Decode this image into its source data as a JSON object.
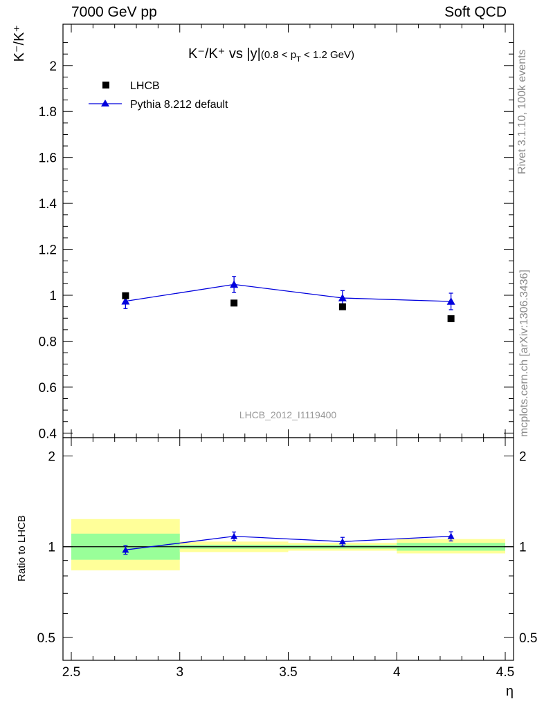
{
  "header": {
    "left": "7000 GeV pp",
    "right": "Soft QCD"
  },
  "side_labels": {
    "rivet": "Rivet 3.1.10,  100k events",
    "mcplots": "mcplots.cern.ch [arXiv:1306.3436]"
  },
  "chart_data": {
    "type": "scatter",
    "title": "K⁻/K⁺ vs |y|(0.8 < p_T < 1.2 GeV)",
    "title_parts": {
      "main": "K⁻/K⁺ vs |y|",
      "cond_open": "(0.8 < p",
      "cond_sub": "T",
      "cond_close": " < 1.2 GeV)"
    },
    "ylabel": "K⁻/K⁺",
    "xlabel": "η",
    "ratio_ylabel": "Ratio to LHCB",
    "watermark": "LHCB_2012_I1119400",
    "xlim": [
      2.5,
      4.5
    ],
    "ylim": [
      0.38,
      2.18
    ],
    "ratio_ylim": [
      0.42,
      2.3
    ],
    "x_ticks": [
      "2.5",
      "3",
      "3.5",
      "4",
      "4.5"
    ],
    "y_ticks": [
      "0.4",
      "0.6",
      "0.8",
      "1",
      "1.2",
      "1.4",
      "1.6",
      "1.8",
      "2"
    ],
    "ratio_y_ticks_left": [
      "0.5",
      "1",
      "2"
    ],
    "ratio_y_ticks_right": [
      "0.5",
      "1",
      "2"
    ],
    "bins": [
      [
        2.5,
        3.0
      ],
      [
        3.0,
        3.5
      ],
      [
        3.5,
        4.0
      ],
      [
        4.0,
        4.5
      ]
    ],
    "series": [
      {
        "name": "LHCB",
        "marker": "square",
        "color": "#000000",
        "x": [
          2.75,
          3.25,
          3.75,
          4.25
        ],
        "y": [
          0.998,
          0.966,
          0.95,
          0.898
        ]
      },
      {
        "name": "Pythia 8.212 default",
        "marker": "triangle",
        "color": "#0000dd",
        "x": [
          2.75,
          3.25,
          3.75,
          4.25
        ],
        "y": [
          0.974,
          1.047,
          0.988,
          0.973
        ],
        "yerr": [
          0.032,
          0.035,
          0.032,
          0.036
        ]
      }
    ],
    "ratio": {
      "x": [
        2.75,
        3.25,
        3.75,
        4.25
      ],
      "values": [
        0.976,
        1.083,
        1.04,
        1.083
      ],
      "errors": [
        0.032,
        0.036,
        0.034,
        0.038
      ],
      "band_inner": [
        [
          0.905,
          1.105
        ],
        [
          0.985,
          1.015
        ],
        [
          0.985,
          1.015
        ],
        [
          0.97,
          1.03
        ]
      ],
      "band_outer": [
        [
          0.835,
          1.235
        ],
        [
          0.96,
          1.04
        ],
        [
          0.97,
          1.03
        ],
        [
          0.95,
          1.06
        ]
      ]
    },
    "legend_position": "top-left"
  }
}
